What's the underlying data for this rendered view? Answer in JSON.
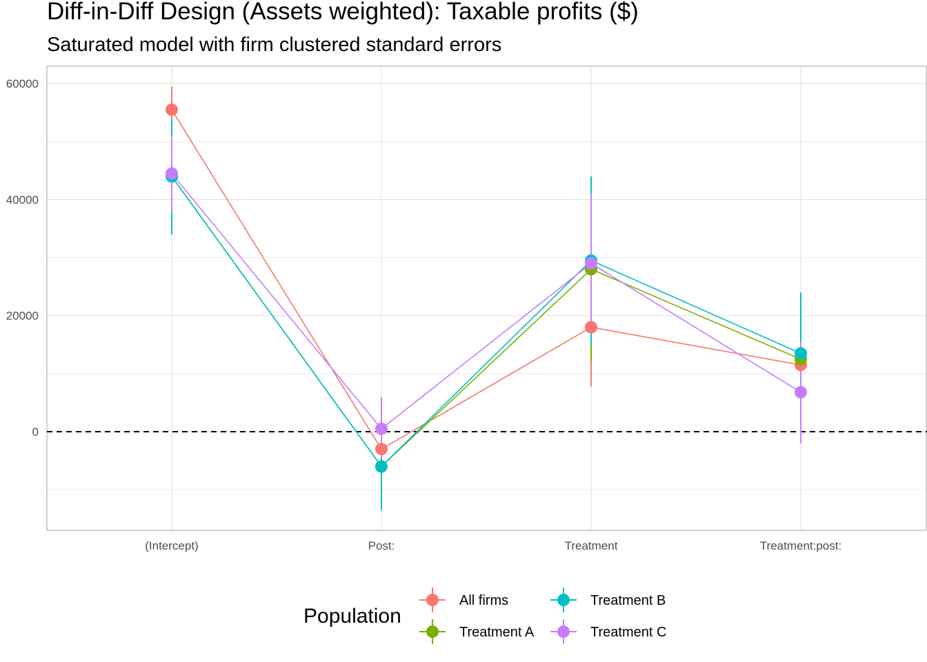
{
  "chart_data": {
    "type": "line",
    "title": "Diff-in-Diff Design (Assets weighted): Taxable profits  ($)",
    "subtitle": "Saturated model with firm clustered standard errors",
    "xlabel": "",
    "ylabel": "",
    "categories": [
      "(Intercept)",
      "Post:",
      "Treatment",
      "Treatment:post:"
    ],
    "y_ticks": [
      0,
      20000,
      40000,
      60000
    ],
    "y_tick_labels": [
      "0",
      "20000",
      "40000",
      "60000"
    ],
    "ylim": [
      -17000,
      63000
    ],
    "reference_line": {
      "y": 0,
      "style": "dashed"
    },
    "grid": true,
    "legend_position": "bottom",
    "legend_title": "Population",
    "series": [
      {
        "name": "All firms",
        "color": "#F8766D",
        "values": [
          55500,
          -3000,
          18000,
          11500
        ],
        "lower": [
          51500,
          -7000,
          7800,
          4500
        ],
        "upper": [
          59500,
          1000,
          28000,
          18500
        ]
      },
      {
        "name": "Treatment A",
        "color": "#7CAE00",
        "values": [
          44000,
          -6000,
          28000,
          12500
        ],
        "lower": [
          34000,
          -13000,
          12000,
          1000
        ],
        "upper": [
          54000,
          1000,
          44000,
          24000
        ]
      },
      {
        "name": "Treatment B",
        "color": "#00BFC4",
        "values": [
          44000,
          -6000,
          29500,
          13500
        ],
        "lower": [
          34000,
          -13500,
          15000,
          3000
        ],
        "upper": [
          54000,
          1500,
          44000,
          24000
        ]
      },
      {
        "name": "Treatment C",
        "color": "#C77CFF",
        "values": [
          44500,
          500,
          29000,
          6800
        ],
        "lower": [
          38000,
          -4500,
          17000,
          -2000
        ],
        "upper": [
          51000,
          6000,
          41000,
          15500
        ]
      }
    ]
  }
}
